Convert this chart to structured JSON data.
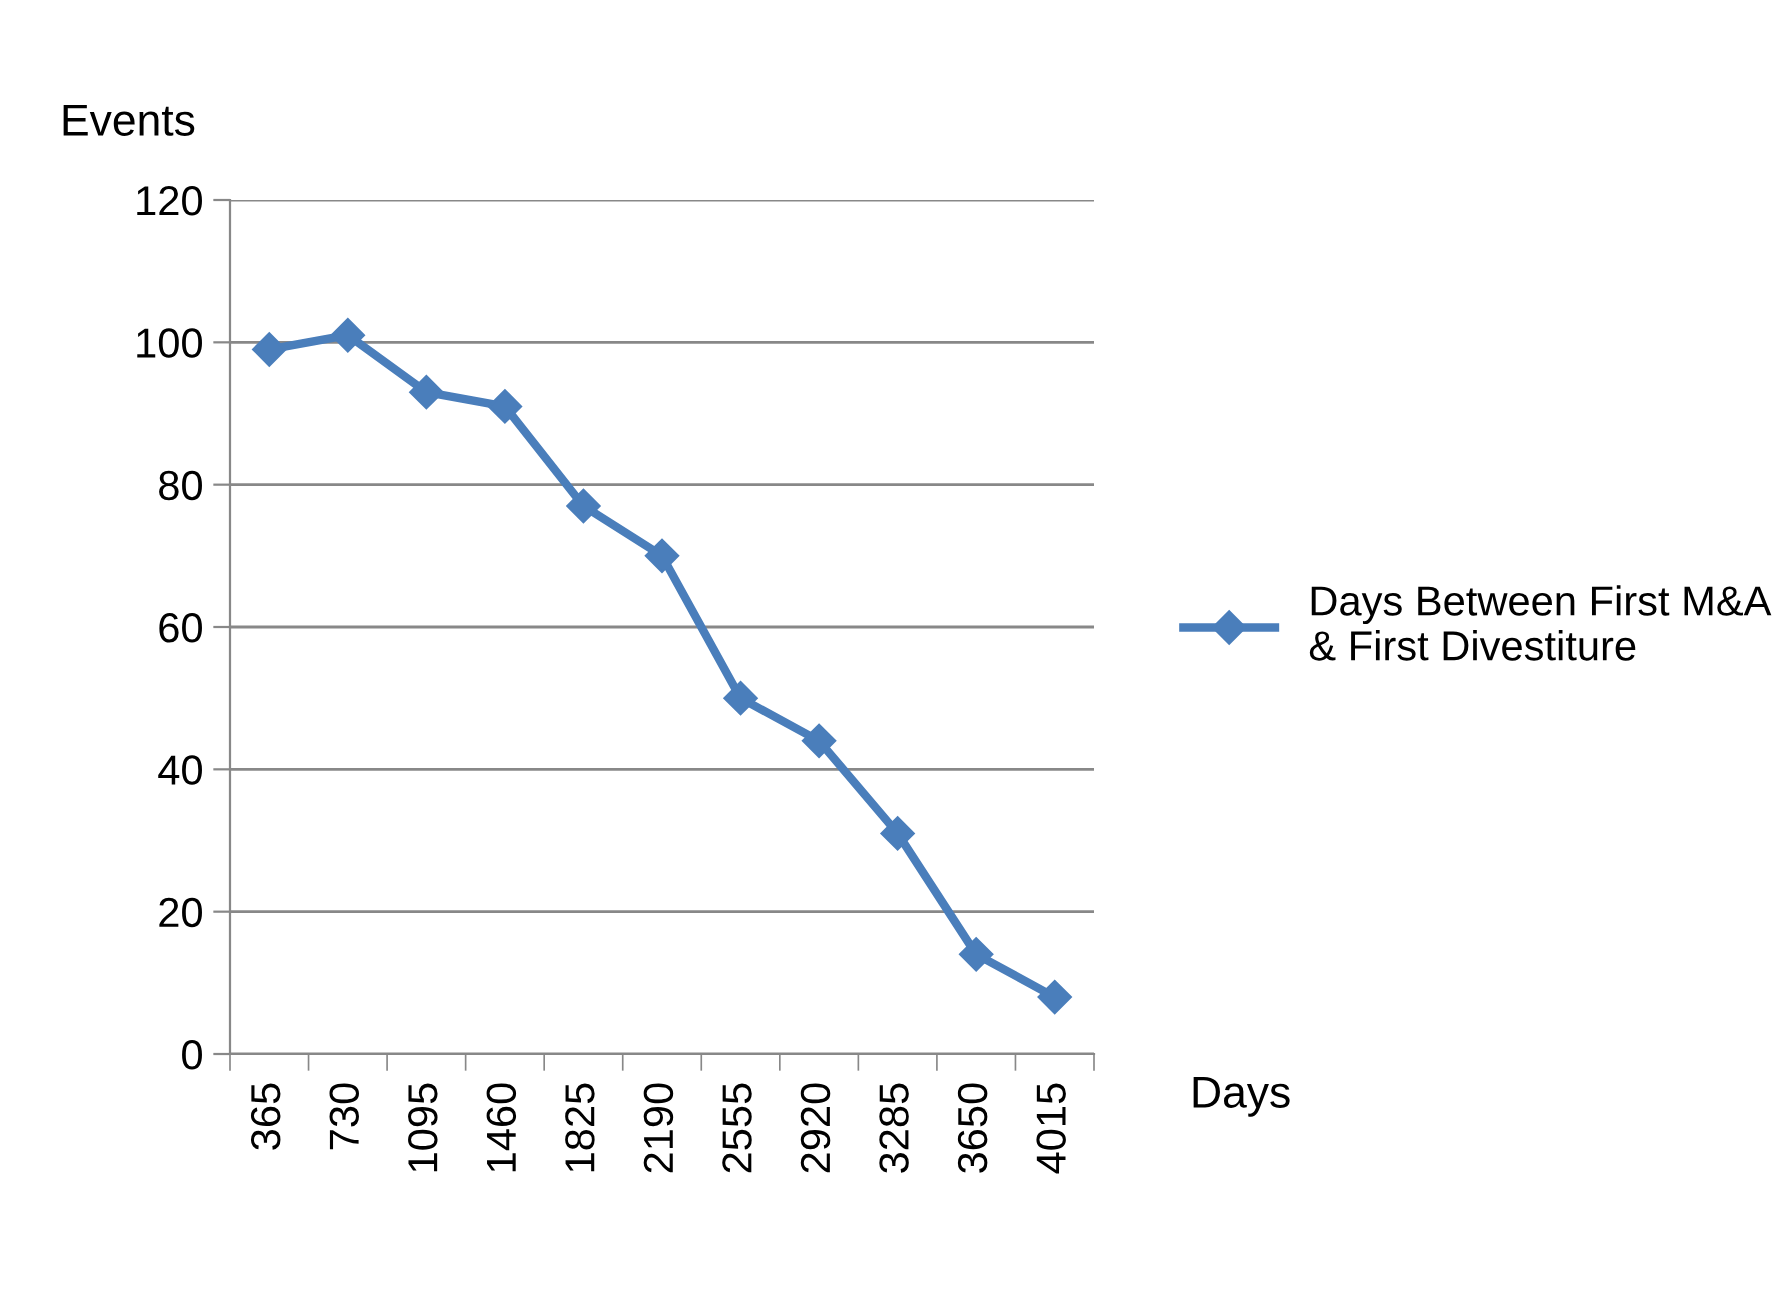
{
  "chart_data": {
    "type": "line",
    "ylabel": "Events",
    "xlabel": "Days",
    "categories": [
      "365",
      "730",
      "1095",
      "1460",
      "1825",
      "2190",
      "2555",
      "2920",
      "3285",
      "3650",
      "4015"
    ],
    "series": [
      {
        "name": "Days Between First M&A & First Divestiture",
        "color": "#4a7ebb",
        "values": [
          99,
          101,
          93,
          91,
          77,
          70,
          50,
          44,
          31,
          14,
          8
        ]
      }
    ],
    "ylim": [
      0,
      120
    ],
    "yticks": [
      0,
      20,
      40,
      60,
      80,
      100,
      120
    ],
    "grid": "y",
    "legend": "right",
    "marker": "diamond",
    "line_style": "solid"
  }
}
